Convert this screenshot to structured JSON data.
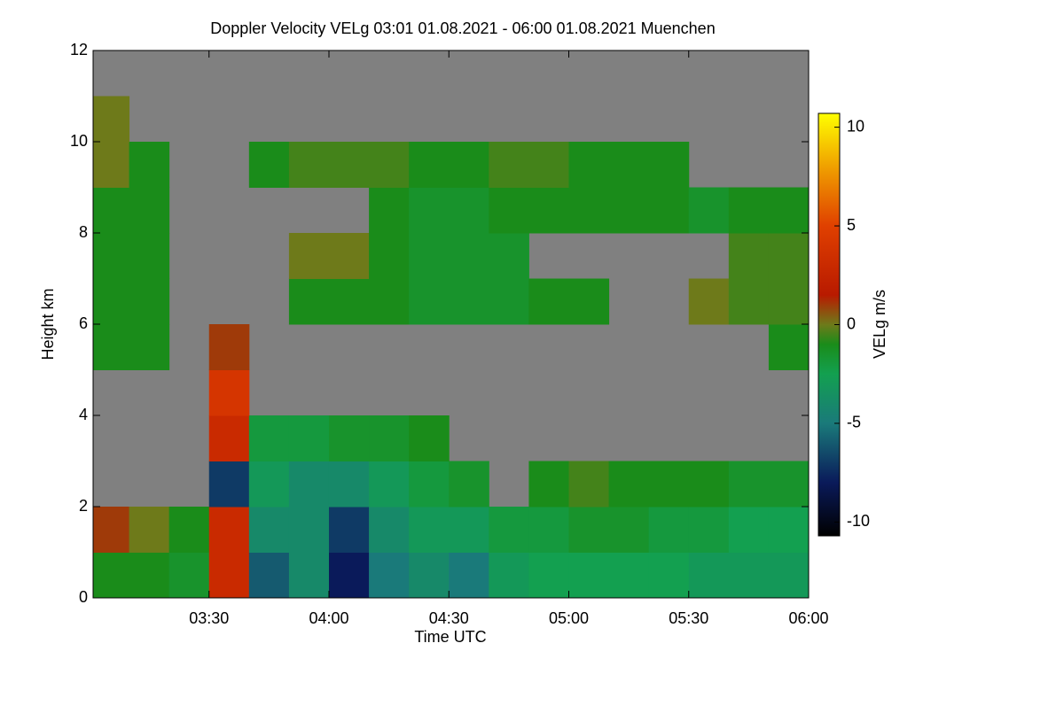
{
  "chart_data": {
    "type": "heatmap",
    "title": "Doppler Velocity VELg   03:01 01.08.2021 - 06:00 01.08.2021 Muenchen",
    "x_label": "Time UTC",
    "y_label": "Height km",
    "colorbar_label": "VELg m/s",
    "xlim": [
      181,
      360
    ],
    "xticks": [
      {
        "value": 210,
        "label": "03:30"
      },
      {
        "value": 240,
        "label": "04:00"
      },
      {
        "value": 270,
        "label": "04:30"
      },
      {
        "value": 300,
        "label": "05:00"
      },
      {
        "value": 330,
        "label": "05:30"
      },
      {
        "value": 360,
        "label": "06:00"
      }
    ],
    "ylim": [
      0,
      12
    ],
    "yticks": [
      0,
      2,
      4,
      6,
      8,
      10,
      12
    ],
    "zlim": [
      -10.7,
      10.7
    ],
    "zticks": [
      10,
      5,
      0,
      -5,
      -10
    ],
    "background_color": "#808080",
    "colormap": [
      {
        "value": -10.7,
        "color": "#000000"
      },
      {
        "value": -8,
        "color": "#0a1a5a"
      },
      {
        "value": -5,
        "color": "#1a7a7a"
      },
      {
        "value": -2.5,
        "color": "#13a050"
      },
      {
        "value": -1,
        "color": "#1a8c1a"
      },
      {
        "value": 0,
        "color": "#6e7a1a"
      },
      {
        "value": 1.5,
        "color": "#b81a00"
      },
      {
        "value": 5,
        "color": "#e04000"
      },
      {
        "value": 8,
        "color": "#f0a000"
      },
      {
        "value": 10.7,
        "color": "#ffff00"
      }
    ],
    "x": [
      180,
      190,
      200,
      210,
      220,
      230,
      240,
      250,
      260,
      270,
      280,
      290,
      300,
      310,
      320,
      330,
      340,
      350
    ],
    "x_step": 10,
    "y": [
      0,
      1,
      2,
      3,
      4,
      5,
      6,
      7,
      8,
      9,
      10,
      11
    ],
    "y_step": 1,
    "z": [
      [
        -1,
        -1,
        -1.5,
        3,
        -6,
        -4,
        -8,
        -5,
        -4,
        -5,
        -3,
        -2.5,
        -2.5,
        -2.5,
        -2.5,
        -3,
        -3,
        -3
      ],
      [
        1,
        0,
        -1,
        3,
        -4,
        -4,
        -7,
        -4,
        -3,
        -3,
        -2,
        -2,
        -1.5,
        -1.5,
        -2,
        -2,
        -2.5,
        -2.5
      ],
      [
        null,
        null,
        null,
        -7,
        -3,
        -4,
        -4,
        -3,
        -2,
        -1.5,
        null,
        -1,
        -0.5,
        -1,
        -1,
        -1,
        -1.5,
        -1.5
      ],
      [
        null,
        null,
        null,
        3,
        -2,
        -2,
        -1.5,
        -1.5,
        -1,
        null,
        null,
        null,
        null,
        null,
        null,
        null,
        null,
        null
      ],
      [
        null,
        null,
        null,
        4,
        null,
        null,
        null,
        null,
        null,
        null,
        null,
        null,
        null,
        null,
        null,
        null,
        null,
        null
      ],
      [
        -1,
        -1,
        null,
        1,
        null,
        null,
        null,
        null,
        null,
        null,
        null,
        null,
        null,
        null,
        null,
        null,
        null,
        -1
      ],
      [
        -1,
        -1,
        null,
        null,
        null,
        -1,
        -1,
        -1,
        -1.5,
        -1.5,
        -1.5,
        -1,
        -1,
        null,
        null,
        0,
        -0.5,
        -0.5
      ],
      [
        -1,
        -1,
        null,
        null,
        null,
        0,
        0,
        -1,
        -1.5,
        -1.5,
        -1.5,
        null,
        null,
        null,
        null,
        null,
        -0.5,
        -0.5
      ],
      [
        -1,
        -1,
        null,
        null,
        null,
        null,
        null,
        -1,
        -1.5,
        -1.5,
        -1,
        -1,
        -1,
        -1,
        -1,
        -1.5,
        -1,
        -1
      ],
      [
        0,
        -1,
        null,
        null,
        -1,
        -0.5,
        -0.5,
        -0.5,
        -1,
        -1,
        -0.5,
        -0.5,
        -1,
        -1,
        -1,
        null,
        null,
        null
      ],
      [
        0,
        null,
        null,
        null,
        null,
        null,
        null,
        null,
        null,
        null,
        null,
        null,
        null,
        null,
        null,
        null,
        null,
        null
      ],
      [
        null,
        null,
        null,
        null,
        null,
        null,
        null,
        null,
        null,
        null,
        null,
        null,
        null,
        null,
        null,
        null,
        null,
        null
      ]
    ]
  }
}
